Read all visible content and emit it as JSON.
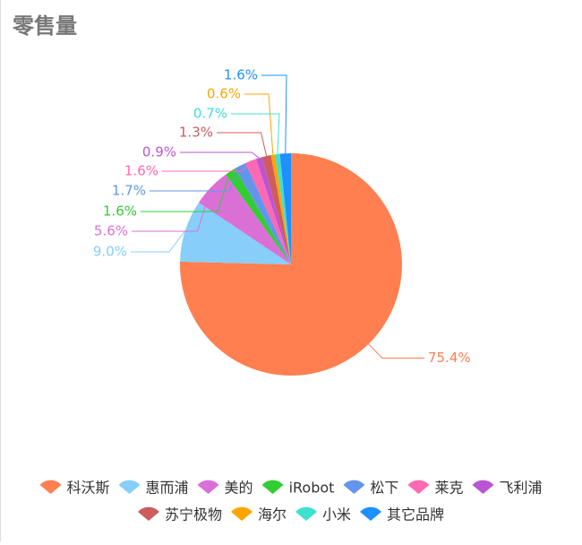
{
  "chart_data": {
    "type": "pie",
    "title": "零售量",
    "categories": [
      "科沃斯",
      "惠而浦",
      "美的",
      "iRobot",
      "松下",
      "莱克",
      "飞利浦",
      "苏宁极物",
      "海尔",
      "小米",
      "其它品牌"
    ],
    "values": [
      75.4,
      9.0,
      5.6,
      1.6,
      1.7,
      1.6,
      0.9,
      1.3,
      0.6,
      0.7,
      1.6
    ],
    "value_labels": [
      "75.4%",
      "9.0%",
      "5.6%",
      "1.6%",
      "1.7%",
      "1.6%",
      "0.9%",
      "1.3%",
      "0.6%",
      "0.7%",
      "1.6%"
    ],
    "colors": [
      "#ff7f50",
      "#87cefa",
      "#da70d6",
      "#32cd32",
      "#6495ed",
      "#ff69b4",
      "#ba55d3",
      "#cd5c5c",
      "#ffa500",
      "#40e0d0",
      "#1e90ff"
    ]
  }
}
